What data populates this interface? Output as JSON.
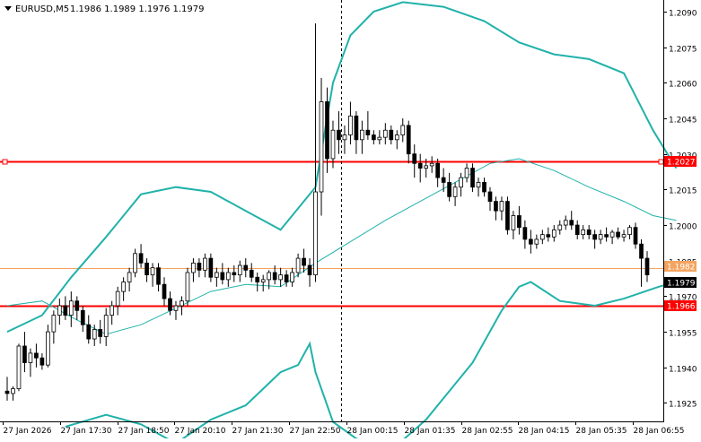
{
  "header": {
    "symbol_timeframe": "EURUSD,M5",
    "ohlc": "1.1986 1.1989 1.1976 1.1979"
  },
  "colors": {
    "background": "#ffffff",
    "axis": "#000000",
    "candles": "#000000",
    "bollinger": "#20b2aa",
    "moving_average": "#20b2aa",
    "hline_red": "#ff0000",
    "bid_line": "#f4a460",
    "price_tag_text": "#ffffff"
  },
  "chart_data": {
    "type": "candlestick",
    "symbol": "EURUSD",
    "timeframe": "M5",
    "ylim": [
      1.1918,
      1.2093
    ],
    "y_ticks": [
      "1.2090",
      "1.2075",
      "1.2060",
      "1.2045",
      "1.2030",
      "1.2015",
      "1.2000",
      "1.1985",
      "1.1970",
      "1.1955",
      "1.1940",
      "1.1925"
    ],
    "x_ticks": [
      "27 Jan 2026",
      "27 Jan 17:30",
      "27 Jan 18:50",
      "27 Jan 20:10",
      "27 Jan 21:30",
      "27 Jan 22:50",
      "28 Jan 00:15",
      "28 Jan 01:35",
      "28 Jan 02:55",
      "28 Jan 04:15",
      "28 Jan 05:35",
      "28 Jan 06:55"
    ],
    "price_tags": [
      {
        "label": "1.2027",
        "value": 1.2027,
        "style": "red-box"
      },
      {
        "label": "1.1982",
        "value": 1.1982,
        "style": "orange-box"
      },
      {
        "label": "1.1979",
        "value": 1.1979,
        "style": "black-box"
      },
      {
        "label": "1.1966",
        "value": 1.1966,
        "style": "red-box"
      }
    ],
    "horizontal_lines": [
      {
        "value": 1.2027,
        "color": "#ff0000",
        "handles": true
      },
      {
        "value": 1.1966,
        "color": "#ff0000",
        "handles": false
      },
      {
        "value": 1.1982,
        "color": "#f4a460",
        "handles": false
      }
    ],
    "vertical_lines": [
      {
        "at_tick": 5.9,
        "style": "dashed"
      }
    ],
    "candles": [
      [
        1.193,
        1.1936,
        1.1926,
        1.1929
      ],
      [
        1.1929,
        1.1932,
        1.1926,
        1.1931
      ],
      [
        1.1931,
        1.195,
        1.193,
        1.1949
      ],
      [
        1.1949,
        1.1955,
        1.1938,
        1.1942
      ],
      [
        1.1942,
        1.1948,
        1.1936,
        1.1946
      ],
      [
        1.1946,
        1.195,
        1.194,
        1.1944
      ],
      [
        1.1944,
        1.1946,
        1.1939,
        1.1941
      ],
      [
        1.1941,
        1.1958,
        1.194,
        1.1955
      ],
      [
        1.1955,
        1.1964,
        1.195,
        1.1962
      ],
      [
        1.1962,
        1.1969,
        1.1958,
        1.1966
      ],
      [
        1.1966,
        1.197,
        1.196,
        1.1962
      ],
      [
        1.1962,
        1.1972,
        1.1957,
        1.1968
      ],
      [
        1.1968,
        1.197,
        1.196,
        1.1964
      ],
      [
        1.1964,
        1.1966,
        1.1955,
        1.1958
      ],
      [
        1.1958,
        1.1962,
        1.195,
        1.1952
      ],
      [
        1.1952,
        1.1958,
        1.1949,
        1.1956
      ],
      [
        1.1956,
        1.196,
        1.195,
        1.1953
      ],
      [
        1.1953,
        1.1965,
        1.1949,
        1.1962
      ],
      [
        1.1962,
        1.1968,
        1.1958,
        1.1966
      ],
      [
        1.1966,
        1.1974,
        1.1962,
        1.1972
      ],
      [
        1.1972,
        1.1978,
        1.1968,
        1.1976
      ],
      [
        1.1976,
        1.1982,
        1.1972,
        1.198
      ],
      [
        1.198,
        1.199,
        1.1978,
        1.1988
      ],
      [
        1.1988,
        1.1992,
        1.1982,
        1.1984
      ],
      [
        1.1984,
        1.1986,
        1.1976,
        1.1979
      ],
      [
        1.1979,
        1.1984,
        1.1974,
        1.1982
      ],
      [
        1.1982,
        1.1984,
        1.1972,
        1.1975
      ],
      [
        1.1975,
        1.1978,
        1.1966,
        1.1969
      ],
      [
        1.1969,
        1.1972,
        1.1962,
        1.1964
      ],
      [
        1.1964,
        1.1968,
        1.196,
        1.1966
      ],
      [
        1.1966,
        1.197,
        1.1962,
        1.1968
      ],
      [
        1.1968,
        1.1982,
        1.1966,
        1.198
      ],
      [
        1.198,
        1.1986,
        1.1976,
        1.1984
      ],
      [
        1.1984,
        1.1986,
        1.1978,
        1.1981
      ],
      [
        1.1981,
        1.1988,
        1.1978,
        1.1986
      ],
      [
        1.1986,
        1.1988,
        1.1976,
        1.1978
      ],
      [
        1.1978,
        1.1982,
        1.1974,
        1.198
      ],
      [
        1.198,
        1.1984,
        1.1975,
        1.1977
      ],
      [
        1.1977,
        1.1982,
        1.1974,
        1.198
      ],
      [
        1.198,
        1.1983,
        1.1976,
        1.1979
      ],
      [
        1.1979,
        1.1985,
        1.1976,
        1.1983
      ],
      [
        1.1983,
        1.1986,
        1.1978,
        1.1981
      ],
      [
        1.1981,
        1.1984,
        1.1976,
        1.1978
      ],
      [
        1.1978,
        1.198,
        1.1972,
        1.1976
      ],
      [
        1.1976,
        1.1979,
        1.1972,
        1.1977
      ],
      [
        1.1977,
        1.1981,
        1.1973,
        1.198
      ],
      [
        1.198,
        1.1983,
        1.1975,
        1.1977
      ],
      [
        1.1977,
        1.1982,
        1.1974,
        1.1979
      ],
      [
        1.1979,
        1.1981,
        1.1974,
        1.1976
      ],
      [
        1.1976,
        1.1982,
        1.1974,
        1.198
      ],
      [
        1.198,
        1.1988,
        1.1978,
        1.1986
      ],
      [
        1.1986,
        1.199,
        1.198,
        1.1983
      ],
      [
        1.1983,
        1.1986,
        1.1974,
        1.1979
      ],
      [
        1.1979,
        1.2085,
        1.1976,
        1.2014
      ],
      [
        1.2014,
        1.2062,
        1.2004,
        1.2052
      ],
      [
        1.2052,
        1.2058,
        1.2022,
        1.2028
      ],
      [
        1.2028,
        1.2044,
        1.2024,
        1.204
      ],
      [
        1.204,
        1.2048,
        1.203,
        1.2036
      ],
      [
        1.2036,
        1.2042,
        1.203,
        1.2038
      ],
      [
        1.2038,
        1.2052,
        1.2034,
        1.2046
      ],
      [
        1.2046,
        1.2048,
        1.203,
        1.2036
      ],
      [
        1.2036,
        1.2044,
        1.203,
        1.204
      ],
      [
        1.204,
        1.2048,
        1.2036,
        1.2038
      ],
      [
        1.2038,
        1.204,
        1.2034,
        1.2036
      ],
      [
        1.2036,
        1.204,
        1.2034,
        1.2037
      ],
      [
        1.2037,
        1.2043,
        1.2034,
        1.204
      ],
      [
        1.204,
        1.2042,
        1.2034,
        1.2036
      ],
      [
        1.2036,
        1.204,
        1.2032,
        1.2038
      ],
      [
        1.2038,
        1.2045,
        1.2035,
        1.2042
      ],
      [
        1.2042,
        1.2044,
        1.2026,
        1.203
      ],
      [
        1.203,
        1.2034,
        1.202,
        1.2026
      ],
      [
        1.2026,
        1.203,
        1.2018,
        1.2024
      ],
      [
        1.2024,
        1.2028,
        1.202,
        1.2025
      ],
      [
        1.2025,
        1.2029,
        1.2022,
        1.2026
      ],
      [
        1.2026,
        1.2028,
        1.2016,
        1.202
      ],
      [
        1.202,
        1.2024,
        1.2014,
        1.2018
      ],
      [
        1.2018,
        1.2022,
        1.201,
        1.2012
      ],
      [
        1.2012,
        1.2018,
        1.2008,
        1.2016
      ],
      [
        1.2016,
        1.2022,
        1.2012,
        1.202
      ],
      [
        1.202,
        1.2026,
        1.2018,
        1.2024
      ],
      [
        1.2024,
        1.2026,
        1.2014,
        1.2016
      ],
      [
        1.2016,
        1.202,
        1.2012,
        1.2018
      ],
      [
        1.2018,
        1.202,
        1.2012,
        1.2014
      ],
      [
        1.2014,
        1.2016,
        1.2006,
        1.201
      ],
      [
        1.201,
        1.2012,
        1.2002,
        1.2006
      ],
      [
        1.2006,
        1.2012,
        1.2002,
        1.201
      ],
      [
        1.201,
        1.2012,
        1.1996,
        1.1998
      ],
      [
        1.1998,
        1.2006,
        1.1994,
        1.2004
      ],
      [
        1.2004,
        1.2008,
        1.1996,
        1.1999
      ],
      [
        1.1999,
        1.2002,
        1.199,
        1.1994
      ],
      [
        1.1994,
        1.1998,
        1.1988,
        1.1992
      ],
      [
        1.1992,
        1.1996,
        1.199,
        1.1994
      ],
      [
        1.1994,
        1.1998,
        1.1992,
        1.1996
      ],
      [
        1.1996,
        1.1999,
        1.1993,
        1.1995
      ],
      [
        1.1995,
        1.2,
        1.1993,
        1.1998
      ],
      [
        1.1998,
        1.2002,
        1.1996,
        1.2
      ],
      [
        1.2,
        1.2004,
        1.1998,
        1.2002
      ],
      [
        1.2002,
        1.2006,
        1.1998,
        1.2
      ],
      [
        1.2,
        1.2002,
        1.1994,
        1.1996
      ],
      [
        1.1996,
        1.2,
        1.1994,
        1.1998
      ],
      [
        1.1998,
        1.2,
        1.1994,
        1.1996
      ],
      [
        1.1996,
        1.1998,
        1.199,
        1.1994
      ],
      [
        1.1994,
        1.1998,
        1.1992,
        1.1996
      ],
      [
        1.1996,
        1.1999,
        1.1993,
        1.1995
      ],
      [
        1.1995,
        1.1998,
        1.1992,
        1.1997
      ],
      [
        1.1997,
        1.1999,
        1.1994,
        1.1995
      ],
      [
        1.1995,
        1.1998,
        1.1993,
        1.1996
      ],
      [
        1.1996,
        1.2,
        1.1994,
        1.1999
      ],
      [
        1.1999,
        1.2001,
        1.199,
        1.1992
      ],
      [
        1.1992,
        1.1994,
        1.1974,
        1.1986
      ],
      [
        1.1986,
        1.1989,
        1.1976,
        1.1979
      ]
    ],
    "bollinger_upper": [
      [
        0,
        1.1955
      ],
      [
        6,
        1.1962
      ],
      [
        11,
        1.1978
      ],
      [
        17,
        1.1995
      ],
      [
        23,
        1.2013
      ],
      [
        29,
        1.2016
      ],
      [
        35,
        1.2014
      ],
      [
        41,
        1.2006
      ],
      [
        47,
        1.1998
      ],
      [
        53,
        1.2016
      ],
      [
        56,
        1.206
      ],
      [
        59,
        1.208
      ],
      [
        63,
        1.209
      ],
      [
        68,
        1.2094
      ],
      [
        75,
        1.2092
      ],
      [
        82,
        1.2086
      ],
      [
        88,
        1.2077
      ],
      [
        94,
        1.2072
      ],
      [
        100,
        1.207
      ],
      [
        106,
        1.2064
      ],
      [
        111,
        1.204
      ],
      [
        115,
        1.2024
      ]
    ],
    "bollinger_lower": [
      [
        10,
        1.1915
      ],
      [
        17,
        1.192
      ],
      [
        23,
        1.1916
      ],
      [
        29,
        1.1908
      ],
      [
        35,
        1.1918
      ],
      [
        41,
        1.1924
      ],
      [
        47,
        1.1938
      ],
      [
        50,
        1.1941
      ],
      [
        52,
        1.195
      ],
      [
        53,
        1.1938
      ],
      [
        56,
        1.1917
      ],
      [
        60,
        1.191
      ],
      [
        66,
        1.1905
      ],
      [
        72,
        1.1918
      ],
      [
        80,
        1.1942
      ],
      [
        85,
        1.1964
      ],
      [
        88,
        1.1974
      ],
      [
        90,
        1.1976
      ],
      [
        95,
        1.1968
      ],
      [
        101,
        1.1966
      ],
      [
        106,
        1.1969
      ],
      [
        112,
        1.1974
      ],
      [
        115,
        1.1976
      ]
    ],
    "moving_average": [
      [
        0,
        1.1966
      ],
      [
        6,
        1.1968
      ],
      [
        12,
        1.196
      ],
      [
        17,
        1.1954
      ],
      [
        23,
        1.1958
      ],
      [
        29,
        1.1965
      ],
      [
        35,
        1.1972
      ],
      [
        41,
        1.1975
      ],
      [
        47,
        1.1974
      ],
      [
        53,
        1.1984
      ],
      [
        59,
        1.1993
      ],
      [
        65,
        1.2002
      ],
      [
        71,
        1.201
      ],
      [
        77,
        1.2018
      ],
      [
        83,
        1.2026
      ],
      [
        88,
        1.2028
      ],
      [
        94,
        1.2023
      ],
      [
        100,
        1.2016
      ],
      [
        106,
        1.201
      ],
      [
        111,
        1.2004
      ],
      [
        115,
        1.2002
      ]
    ]
  }
}
